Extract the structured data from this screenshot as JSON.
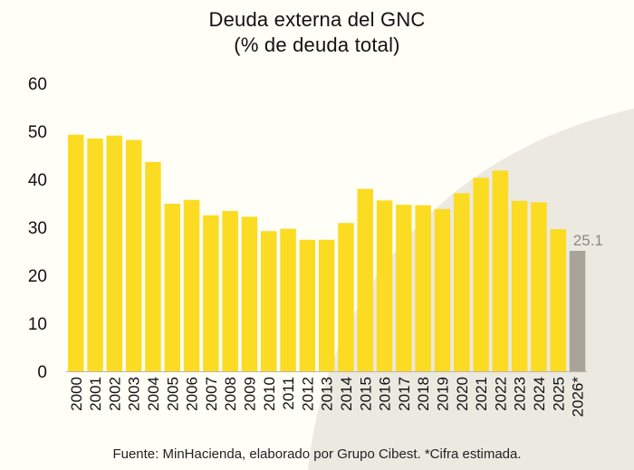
{
  "title_lines": [
    "Deuda externa del GNC",
    "(% de deuda total)"
  ],
  "footer": "Fuente: MinHacienda, elaborado por Grupo Cibest. *Cifra estimada.",
  "colors": {
    "bar_actual": "#fcdb23",
    "bar_estimate": "#aaa398",
    "estimate_label": "#8f8a80",
    "background": "#fffef7",
    "swoosh": "#ece9e1",
    "axis": "#bdb6aa",
    "text": "#111111"
  },
  "chart_data": {
    "type": "bar",
    "title": "Deuda externa del GNC\n(% de deuda total)",
    "categories": [
      "2000",
      "2001",
      "2002",
      "2003",
      "2004",
      "2005",
      "2006",
      "2007",
      "2008",
      "2009",
      "2010",
      "2011",
      "2012",
      "2013",
      "2014",
      "2015",
      "2016",
      "2017",
      "2018",
      "2019",
      "2020",
      "2021",
      "2022",
      "2023",
      "2024",
      "2025",
      "2026*"
    ],
    "values": [
      49.3,
      48.5,
      49.1,
      48.2,
      43.6,
      34.9,
      35.7,
      32.5,
      33.4,
      32.2,
      29.2,
      29.7,
      27.4,
      27.4,
      30.9,
      38.0,
      35.6,
      34.7,
      34.6,
      33.8,
      37.1,
      40.3,
      41.8,
      35.5,
      35.2,
      29.6,
      25.1
    ],
    "estimated": [
      false,
      false,
      false,
      false,
      false,
      false,
      false,
      false,
      false,
      false,
      false,
      false,
      false,
      false,
      false,
      false,
      false,
      false,
      false,
      false,
      false,
      false,
      false,
      false,
      false,
      false,
      true
    ],
    "data_labels": [
      {
        "index": 26,
        "text": "25.1"
      }
    ],
    "yticks": [
      "0",
      "10",
      "20",
      "30",
      "40",
      "50",
      "60"
    ],
    "ylim": [
      0,
      60
    ],
    "xlabel": "",
    "ylabel": "",
    "grid": false,
    "legend": "none"
  }
}
